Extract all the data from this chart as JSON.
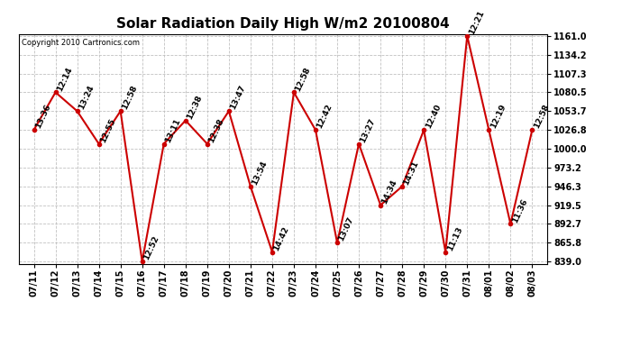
{
  "title": "Solar Radiation Daily High W/m2 20100804",
  "copyright": "Copyright 2010 Cartronics.com",
  "dates": [
    "07/11",
    "07/12",
    "07/13",
    "07/14",
    "07/15",
    "07/16",
    "07/17",
    "07/18",
    "07/19",
    "07/20",
    "07/21",
    "07/22",
    "07/23",
    "07/24",
    "07/25",
    "07/26",
    "07/27",
    "07/28",
    "07/29",
    "07/30",
    "07/31",
    "08/01",
    "08/02",
    "08/03"
  ],
  "values": [
    1026.8,
    1080.5,
    1053.7,
    1007.0,
    1053.7,
    839.0,
    1007.0,
    1040.3,
    1007.0,
    1053.7,
    946.3,
    852.7,
    1080.5,
    1026.8,
    865.8,
    1007.0,
    919.5,
    946.3,
    1026.8,
    852.7,
    1161.0,
    1026.8,
    892.7,
    1026.8
  ],
  "times": [
    "13:36",
    "12:14",
    "13:24",
    "12:55",
    "12:58",
    "12:52",
    "13:11",
    "12:38",
    "12:38",
    "13:47",
    "13:54",
    "14:42",
    "12:58",
    "12:42",
    "13:07",
    "13:27",
    "14:34",
    "14:31",
    "12:40",
    "11:13",
    "12:21",
    "12:19",
    "11:36",
    "12:58"
  ],
  "ylim": [
    839.0,
    1161.0
  ],
  "yticks": [
    839.0,
    865.8,
    892.7,
    919.5,
    946.3,
    973.2,
    1000.0,
    1026.8,
    1053.7,
    1080.5,
    1107.3,
    1134.2,
    1161.0
  ],
  "line_color": "#cc0000",
  "marker_color": "#cc0000",
  "bg_color": "#ffffff",
  "grid_color": "#bbbbbb",
  "title_fontsize": 11,
  "label_fontsize": 7,
  "annotation_fontsize": 6.5
}
